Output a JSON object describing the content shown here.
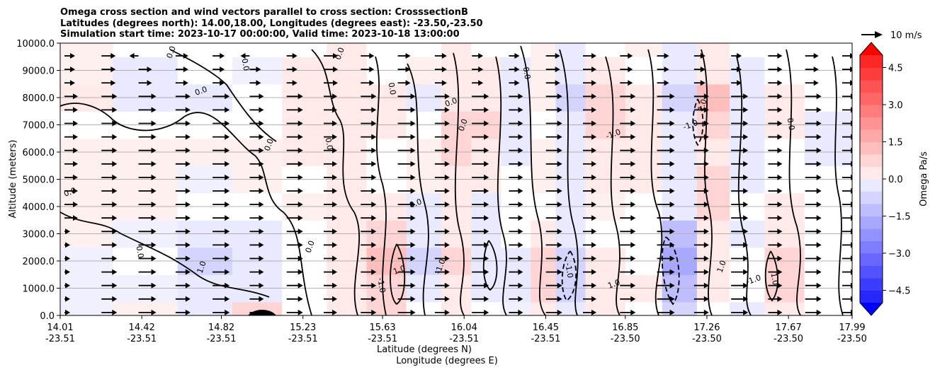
{
  "chart_data": {
    "type": "contourf-cross-section",
    "title": [
      "Omega cross section and wind vectors parallel to cross section: CrosssectionB",
      "Latitudes (degrees north): 14.00,18.00, Longitudes (degrees east): -23.50,-23.50",
      "Simulation start time: 2023-10-17 00:00:00, Valid time: 2023-10-18 13:00:00"
    ],
    "ylabel": "Altitude (meters)",
    "xlabel_1": "Latitude (degrees N)",
    "xlabel_2": "Longitude (degrees E)",
    "ylim": [
      0,
      10000
    ],
    "yticks": [
      "0.0",
      "1000.0",
      "2000.0",
      "3000.0",
      "4000.0",
      "5000.0",
      "6000.0",
      "7000.0",
      "8000.0",
      "9000.0",
      "10000.0"
    ],
    "xticks_lat": [
      "14.01",
      "14.42",
      "14.82",
      "15.23",
      "15.63",
      "16.04",
      "16.45",
      "16.85",
      "17.26",
      "17.67",
      "17.99"
    ],
    "xticks_lon": [
      "-23.51",
      "-23.51",
      "-23.51",
      "-23.51",
      "-23.51",
      "-23.51",
      "-23.51",
      "-23.50",
      "-23.50",
      "-23.50",
      "-23.50"
    ],
    "xlim_lat": [
      14.01,
      17.99
    ],
    "quiver_key_label": "10 m/s",
    "colorbar": {
      "label": "Omega Pa/s",
      "ticks": [
        "−4.5",
        "−3.0",
        "−1.5",
        "0.0",
        "1.5",
        "3.0",
        "4.5"
      ],
      "tick_values": [
        -4.5,
        -3.0,
        -1.5,
        0.0,
        1.5,
        3.0,
        4.5
      ],
      "range": [
        -5.0,
        5.0
      ],
      "n_levels": 20,
      "extend": "both",
      "neg_color": "#0000ff",
      "pos_color": "#ff0000"
    },
    "contour_labels": [
      "0.0",
      "0.0",
      "0.0",
      "0.0",
      "0.0",
      "0.0",
      "0.0",
      "0.0",
      "0.0",
      "0.0",
      "0.0",
      "0.0",
      "1.0",
      "-1.0",
      "1.0",
      "-1.0",
      "-1.0",
      "1.0",
      "0.0",
      "0.0",
      "-1.0",
      "1.0",
      "1.0",
      "-1.0",
      "1.0",
      "0.0",
      "-1.0"
    ],
    "omega_columns": [
      {
        "lat": 14.1,
        "values": [
          -0.1,
          -0.1,
          -0.1,
          0.1,
          0.1,
          0.1,
          0.1,
          0.2,
          0.3,
          0.1,
          0.0
        ]
      },
      {
        "lat": 14.45,
        "values": [
          0.1,
          -0.1,
          -0.2,
          -0.1,
          0.1,
          0.1,
          0.1,
          -0.2,
          -0.3,
          -0.3,
          -0.2
        ]
      },
      {
        "lat": 14.75,
        "values": [
          -0.3,
          -0.3,
          -1.2,
          -0.3,
          -0.2,
          -0.1,
          0.1,
          -0.2,
          -0.3,
          -0.2,
          -0.2
        ]
      },
      {
        "lat": 15.0,
        "values": [
          0.8,
          -0.5,
          -0.6,
          -0.3,
          -0.2,
          0.1,
          0.1,
          -0.2,
          -0.2,
          -0.1,
          -0.2
        ]
      },
      {
        "lat": 15.25,
        "values": [
          0.2,
          -0.2,
          -0.2,
          -0.2,
          0.1,
          0.2,
          0.3,
          0.3,
          0.4,
          0.3,
          0.2
        ]
      },
      {
        "lat": 15.45,
        "values": [
          0.3,
          0.4,
          0.3,
          0.3,
          0.4,
          0.3,
          0.3,
          0.4,
          0.5,
          0.5,
          0.3
        ]
      },
      {
        "lat": 15.65,
        "values": [
          0.8,
          1.2,
          1.3,
          0.8,
          0.3,
          0.2,
          0.2,
          0.3,
          0.3,
          0.2,
          0.2
        ]
      },
      {
        "lat": 15.85,
        "values": [
          0.2,
          -0.6,
          -0.8,
          -0.6,
          -0.4,
          0.1,
          0.1,
          -0.2,
          -0.3,
          0.1,
          0.2
        ]
      },
      {
        "lat": 16.0,
        "values": [
          0.3,
          0.6,
          0.8,
          0.4,
          0.3,
          0.5,
          0.9,
          0.8,
          0.5,
          0.4,
          0.3
        ]
      },
      {
        "lat": 16.15,
        "values": [
          -0.2,
          -0.3,
          -0.4,
          -0.6,
          -0.3,
          0.3,
          0.7,
          0.9,
          0.6,
          0.3,
          0.2
        ]
      },
      {
        "lat": 16.3,
        "values": [
          -0.1,
          -0.6,
          -0.5,
          -0.2,
          -0.2,
          -0.2,
          -0.3,
          -0.3,
          -0.3,
          -0.4,
          -0.2
        ]
      },
      {
        "lat": 16.45,
        "values": [
          0.4,
          0.9,
          1.1,
          0.5,
          0.2,
          0.1,
          0.1,
          0.2,
          0.1,
          0.1,
          0.1
        ]
      },
      {
        "lat": 16.55,
        "values": [
          -0.3,
          -1.0,
          -1.1,
          -0.6,
          -0.5,
          -0.6,
          -0.5,
          -0.7,
          -0.8,
          -0.6,
          -0.3
        ]
      },
      {
        "lat": 16.75,
        "values": [
          0.3,
          0.4,
          0.3,
          0.2,
          0.1,
          0.3,
          0.6,
          0.9,
          0.8,
          0.4,
          0.2
        ]
      },
      {
        "lat": 16.95,
        "values": [
          0.2,
          0.3,
          0.2,
          0.2,
          0.2,
          0.4,
          0.5,
          0.4,
          0.3,
          0.2,
          0.1
        ]
      },
      {
        "lat": 17.12,
        "values": [
          -0.8,
          -1.6,
          -2.2,
          -1.4,
          -0.7,
          -0.5,
          -0.5,
          -0.6,
          -0.8,
          -0.6,
          -0.3
        ]
      },
      {
        "lat": 17.3,
        "values": [
          0.2,
          0.4,
          0.6,
          0.6,
          0.8,
          0.9,
          0.7,
          1.1,
          1.3,
          0.6,
          0.3
        ]
      },
      {
        "lat": 17.45,
        "values": [
          -0.3,
          -0.2,
          -0.2,
          -0.3,
          -0.2,
          -0.3,
          -0.4,
          -0.5,
          -0.4,
          -0.3,
          -0.2
        ]
      },
      {
        "lat": 17.65,
        "values": [
          0.7,
          1.2,
          1.0,
          0.5,
          0.3,
          0.2,
          0.2,
          0.3,
          0.3,
          0.2,
          0.2
        ]
      },
      {
        "lat": 17.85,
        "values": [
          -0.2,
          -0.2,
          -0.2,
          -0.2,
          -0.2,
          -0.2,
          -0.3,
          -0.3,
          -0.2,
          -0.2,
          -0.2
        ]
      }
    ]
  }
}
